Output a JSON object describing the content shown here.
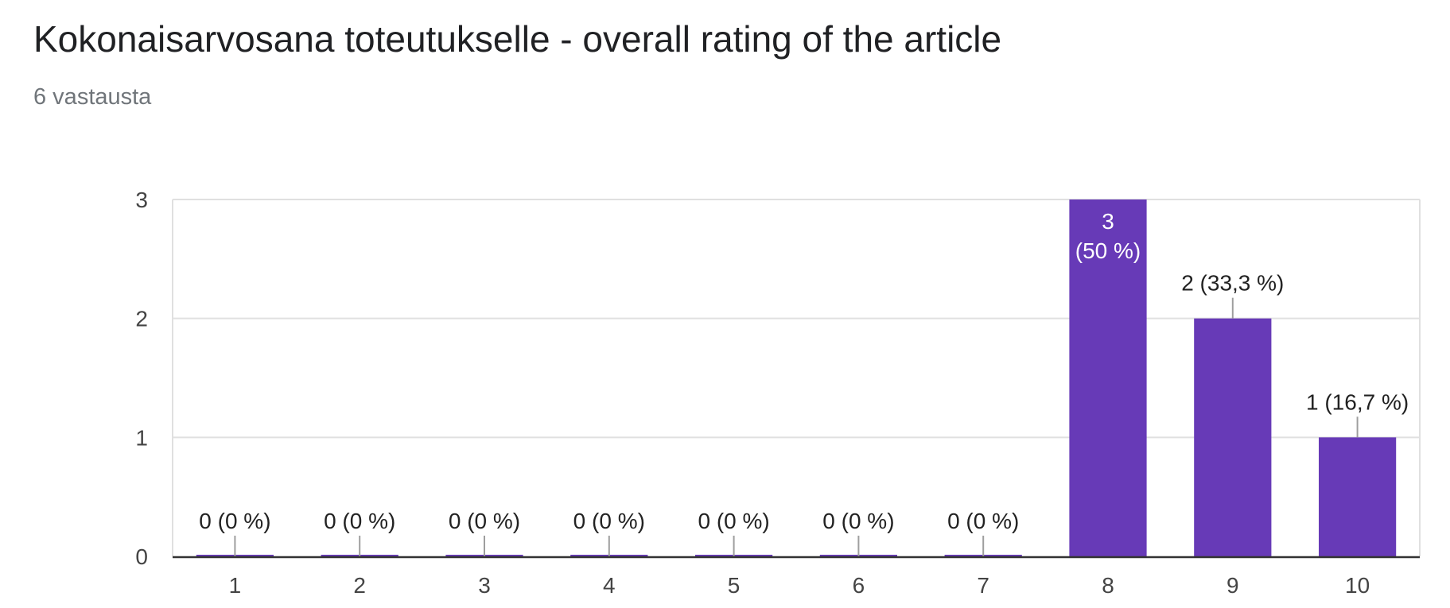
{
  "title": "Kokonaisarvosana toteutukselle - overall rating of the article",
  "subtitle": "6 vastausta",
  "colors": {
    "bar": "#673ab7",
    "grid": "#e0e0e0",
    "axis": "#333333",
    "label": "#222222",
    "tick": "#444444",
    "inside_label": "#ffffff"
  },
  "chart_data": {
    "type": "bar",
    "categories": [
      "1",
      "2",
      "3",
      "4",
      "5",
      "6",
      "7",
      "8",
      "9",
      "10"
    ],
    "values": [
      0,
      0,
      0,
      0,
      0,
      0,
      0,
      3,
      2,
      1
    ],
    "data_labels": [
      "0 (0 %)",
      "0 (0 %)",
      "0 (0 %)",
      "0 (0 %)",
      "0 (0 %)",
      "0 (0 %)",
      "0 (0 %)",
      "3 (50 %)",
      "2 (33,3 %)",
      "1 (16,7 %)"
    ],
    "data_label_lines": [
      [
        "0 (0 %)"
      ],
      [
        "0 (0 %)"
      ],
      [
        "0 (0 %)"
      ],
      [
        "0 (0 %)"
      ],
      [
        "0 (0 %)"
      ],
      [
        "0 (0 %)"
      ],
      [
        "0 (0 %)"
      ],
      [
        "3",
        "(50 %)"
      ],
      [
        "2 (33,3 %)"
      ],
      [
        "1 (16,7 %)"
      ]
    ],
    "y_ticks": [
      "0",
      "1",
      "2",
      "3"
    ],
    "ylim": [
      0,
      3
    ],
    "grid": true,
    "title": "Kokonaisarvosana toteutukselle - overall rating of the article",
    "subtitle": "6 vastausta",
    "xlabel": "",
    "ylabel": ""
  }
}
